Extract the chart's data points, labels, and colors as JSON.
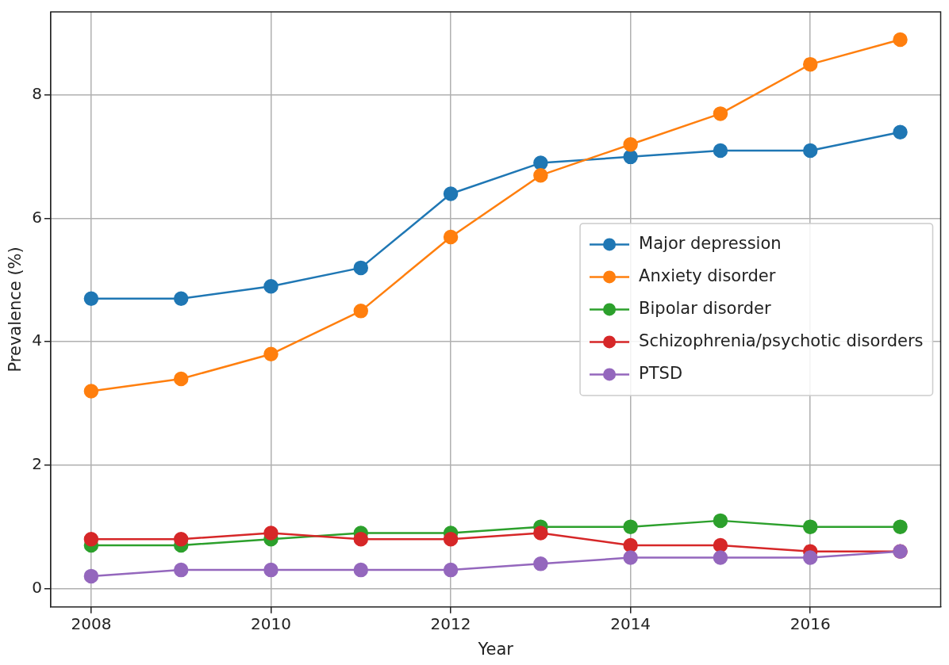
{
  "chart_data": {
    "type": "line",
    "xlabel": "Year",
    "ylabel": "Prevalence (%)",
    "x": [
      2008,
      2009,
      2010,
      2011,
      2012,
      2013,
      2014,
      2015,
      2016,
      2017
    ],
    "series": [
      {
        "name": "Major depression",
        "color": "#1f77b4",
        "values": [
          4.7,
          4.7,
          4.9,
          5.2,
          6.4,
          6.9,
          7.0,
          7.1,
          7.1,
          7.4
        ]
      },
      {
        "name": "Anxiety disorder",
        "color": "#ff7f0e",
        "values": [
          3.2,
          3.4,
          3.8,
          4.5,
          5.7,
          6.7,
          7.2,
          7.7,
          8.5,
          8.9
        ]
      },
      {
        "name": "Bipolar disorder",
        "color": "#2ca02c",
        "values": [
          0.7,
          0.7,
          0.8,
          0.9,
          0.9,
          1.0,
          1.0,
          1.1,
          1.0,
          1.0
        ]
      },
      {
        "name": "Schizophrenia/psychotic disorders",
        "color": "#d62728",
        "values": [
          0.8,
          0.8,
          0.9,
          0.8,
          0.8,
          0.9,
          0.7,
          0.7,
          0.6,
          0.6
        ]
      },
      {
        "name": "PTSD",
        "color": "#9467bd",
        "values": [
          0.2,
          0.3,
          0.3,
          0.3,
          0.3,
          0.4,
          0.5,
          0.5,
          0.5,
          0.6
        ]
      }
    ],
    "xlim": [
      2007.55,
      2017.45
    ],
    "xticks": [
      2008,
      2010,
      2012,
      2014,
      2016
    ],
    "ylim": [
      -0.3,
      9.35
    ],
    "yticks": [
      0,
      2,
      4,
      6,
      8
    ],
    "grid": true,
    "legend": "right",
    "marker": "circle",
    "line_style": "solid"
  }
}
